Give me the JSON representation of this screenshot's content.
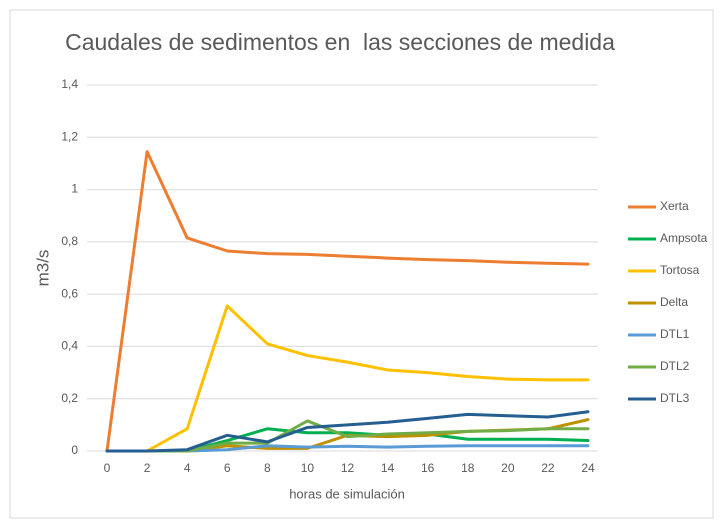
{
  "chart_data": {
    "type": "line",
    "title": "Caudales de sedimentos en  las secciones de medida",
    "xlabel": "horas de simulación",
    "ylabel": "m3/s",
    "x": [
      0,
      2,
      4,
      6,
      8,
      10,
      12,
      14,
      16,
      18,
      20,
      22,
      24
    ],
    "xlim": [
      0,
      24
    ],
    "xticks": [
      0,
      2,
      4,
      6,
      8,
      10,
      12,
      14,
      16,
      18,
      20,
      22,
      24
    ],
    "ylim": [
      0,
      1.4
    ],
    "yticks": [
      0,
      {
        "value": 0.2,
        "label": "0,2"
      },
      {
        "value": 0.4,
        "label": "0,4"
      },
      {
        "value": 0.6,
        "label": "0,6"
      },
      {
        "value": 0.8,
        "label": "0,8"
      },
      1,
      {
        "value": 1.2,
        "label": "1,2"
      },
      {
        "value": 1.4,
        "label": "1,4"
      }
    ],
    "grid": true,
    "legend": "right",
    "series": [
      {
        "name": "Xerta",
        "color": "#ED7D31",
        "values": [
          0,
          1.145,
          0.815,
          0.765,
          0.755,
          0.752,
          0.745,
          0.738,
          0.732,
          0.728,
          0.722,
          0.718,
          0.715
        ]
      },
      {
        "name": "Ampsota",
        "color": "#00B050",
        "values": [
          0,
          0,
          0,
          0.04,
          0.085,
          0.07,
          0.07,
          0.06,
          0.065,
          0.045,
          0.045,
          0.045,
          0.04
        ]
      },
      {
        "name": "Tortosa",
        "color": "#FFC000",
        "values": [
          0,
          0,
          0.085,
          0.555,
          0.41,
          0.365,
          0.34,
          0.31,
          0.3,
          0.285,
          0.275,
          0.272,
          0.272
        ]
      },
      {
        "name": "Delta",
        "color": "#BF9000",
        "values": [
          0,
          0,
          0,
          0.02,
          0.01,
          0.01,
          0.06,
          0.055,
          0.06,
          0.075,
          0.08,
          0.085,
          0.12
        ]
      },
      {
        "name": "DTL1",
        "color": "#5B9BD5",
        "values": [
          0,
          0,
          0,
          0.005,
          0.02,
          0.015,
          0.018,
          0.015,
          0.018,
          0.02,
          0.02,
          0.02,
          0.02
        ]
      },
      {
        "name": "DTL2",
        "color": "#70AD47",
        "values": [
          0,
          0,
          0,
          0.03,
          0.03,
          0.115,
          0.055,
          0.065,
          0.07,
          0.075,
          0.078,
          0.085,
          0.085
        ]
      },
      {
        "name": "DTL3",
        "color": "#255E91",
        "values": [
          0,
          0,
          0.005,
          0.06,
          0.035,
          0.09,
          0.1,
          0.11,
          0.125,
          0.14,
          0.135,
          0.13,
          0.15
        ]
      }
    ]
  }
}
